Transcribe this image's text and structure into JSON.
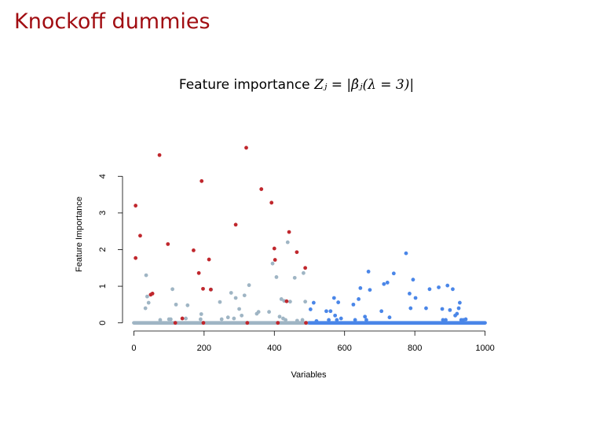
{
  "slide": {
    "title": "Knockoff dummies"
  },
  "chart_data": {
    "type": "scatter",
    "title_text": "Feature importance ",
    "title_formula": "Zⱼ = |β̂ⱼ(λ = 3)|",
    "xlabel": "Variables",
    "ylabel": "Feature Importance",
    "xlim": [
      -30,
      1030
    ],
    "ylim": [
      -0.2,
      4.95
    ],
    "xticks": [
      0,
      200,
      400,
      600,
      800,
      1000
    ],
    "yticks": [
      0,
      1,
      2,
      3,
      4
    ],
    "grid": false,
    "legend": "none",
    "colors": {
      "signal": "#c0272d",
      "null_original": "#9fb5c4",
      "knockoff": "#4a86e8",
      "axis": "#000000"
    },
    "zero_runs": [
      {
        "series": "null_original",
        "x_from": 0,
        "x_to": 500
      },
      {
        "series": "knockoff",
        "x_from": 500,
        "x_to": 1000
      }
    ],
    "series": [
      {
        "key": "signal",
        "points": [
          [
            5,
            3.2
          ],
          [
            5,
            1.77
          ],
          [
            18,
            2.38
          ],
          [
            48,
            0.77
          ],
          [
            53,
            0.8
          ],
          [
            73,
            4.58
          ],
          [
            97,
            2.15
          ],
          [
            118,
            0.0
          ],
          [
            138,
            0.12
          ],
          [
            170,
            1.98
          ],
          [
            185,
            1.36
          ],
          [
            193,
            3.87
          ],
          [
            197,
            0.93
          ],
          [
            198,
            0.0
          ],
          [
            214,
            1.73
          ],
          [
            219,
            0.91
          ],
          [
            290,
            2.68
          ],
          [
            320,
            4.78
          ],
          [
            323,
            0.0
          ],
          [
            363,
            3.65
          ],
          [
            392,
            3.28
          ],
          [
            400,
            2.03
          ],
          [
            402,
            1.72
          ],
          [
            410,
            0.0
          ],
          [
            435,
            0.59
          ],
          [
            442,
            2.48
          ],
          [
            464,
            1.93
          ],
          [
            488,
            1.5
          ],
          [
            490,
            0.0
          ]
        ]
      },
      {
        "key": "null_original",
        "points": [
          [
            35,
            1.3
          ],
          [
            33,
            0.4
          ],
          [
            38,
            0.72
          ],
          [
            42,
            0.55
          ],
          [
            75,
            0.08
          ],
          [
            100,
            0.1
          ],
          [
            105,
            0.1
          ],
          [
            110,
            0.92
          ],
          [
            120,
            0.5
          ],
          [
            148,
            0.12
          ],
          [
            153,
            0.48
          ],
          [
            190,
            0.1
          ],
          [
            192,
            0.24
          ],
          [
            220,
            0.91
          ],
          [
            245,
            0.57
          ],
          [
            250,
            0.1
          ],
          [
            268,
            0.15
          ],
          [
            277,
            0.82
          ],
          [
            285,
            0.12
          ],
          [
            290,
            0.68
          ],
          [
            300,
            0.38
          ],
          [
            307,
            0.2
          ],
          [
            315,
            0.75
          ],
          [
            328,
            1.03
          ],
          [
            350,
            0.25
          ],
          [
            355,
            0.3
          ],
          [
            385,
            0.3
          ],
          [
            395,
            1.62
          ],
          [
            406,
            1.25
          ],
          [
            415,
            0.17
          ],
          [
            420,
            0.65
          ],
          [
            425,
            0.12
          ],
          [
            428,
            0.6
          ],
          [
            432,
            0.08
          ],
          [
            438,
            2.2
          ],
          [
            445,
            0.58
          ],
          [
            458,
            1.23
          ],
          [
            465,
            0.06
          ],
          [
            483,
            1.36
          ],
          [
            480,
            0.08
          ],
          [
            488,
            0.58
          ]
        ]
      },
      {
        "key": "knockoff",
        "points": [
          [
            503,
            0.37
          ],
          [
            512,
            0.55
          ],
          [
            520,
            0.05
          ],
          [
            548,
            0.32
          ],
          [
            555,
            0.08
          ],
          [
            560,
            0.32
          ],
          [
            570,
            0.68
          ],
          [
            573,
            0.2
          ],
          [
            578,
            0.08
          ],
          [
            582,
            0.56
          ],
          [
            590,
            0.12
          ],
          [
            625,
            0.5
          ],
          [
            630,
            0.08
          ],
          [
            640,
            0.65
          ],
          [
            645,
            0.95
          ],
          [
            658,
            0.17
          ],
          [
            662,
            0.08
          ],
          [
            668,
            1.4
          ],
          [
            672,
            0.9
          ],
          [
            705,
            0.32
          ],
          [
            712,
            1.06
          ],
          [
            722,
            1.1
          ],
          [
            728,
            0.15
          ],
          [
            740,
            1.35
          ],
          [
            775,
            1.9
          ],
          [
            785,
            0.8
          ],
          [
            788,
            0.4
          ],
          [
            795,
            1.18
          ],
          [
            802,
            0.68
          ],
          [
            832,
            0.4
          ],
          [
            842,
            0.92
          ],
          [
            868,
            0.97
          ],
          [
            878,
            0.38
          ],
          [
            880,
            0.08
          ],
          [
            888,
            0.08
          ],
          [
            893,
            1.02
          ],
          [
            900,
            0.35
          ],
          [
            908,
            0.92
          ],
          [
            915,
            0.2
          ],
          [
            920,
            0.25
          ],
          [
            925,
            0.4
          ],
          [
            928,
            0.55
          ],
          [
            932,
            0.08
          ],
          [
            938,
            0.08
          ],
          [
            945,
            0.1
          ]
        ]
      }
    ]
  }
}
